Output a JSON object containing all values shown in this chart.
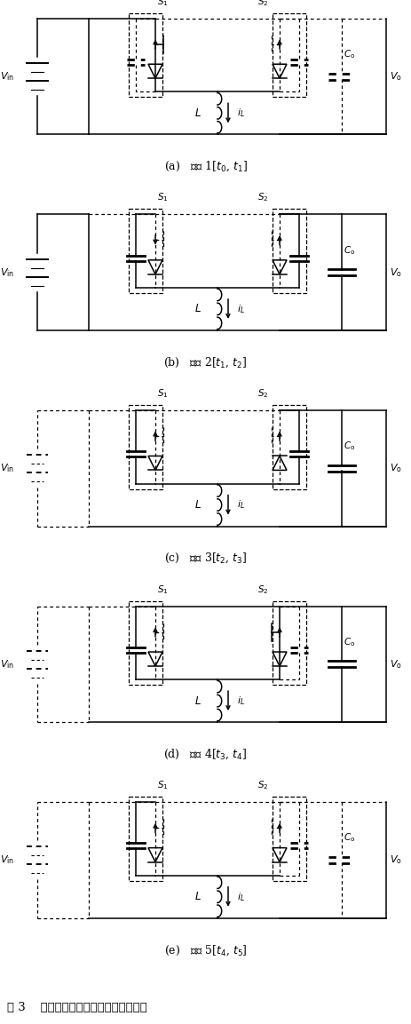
{
  "figure_width": 4.63,
  "figure_height": 11.53,
  "panels": [
    {
      "label": "(a)",
      "caption": "阶段 1[$t_0$, $t_1$]",
      "vin_dashed": false,
      "s1_box_dashed": false,
      "s1_cap_dashed": true,
      "s1_arrow_up": true,
      "s2_box_dashed": true,
      "s2_cap_dashed": true,
      "s2_diode_flipped": false,
      "co_dashed": true,
      "right_rail_dashed": true,
      "mid_rail_dashed": false,
      "bot_rail_right_dashed": false
    },
    {
      "label": "(b)",
      "caption": "阶段 2[$t_1$, $t_2$]",
      "vin_dashed": false,
      "s1_box_dashed": true,
      "s1_cap_dashed": false,
      "s1_arrow_up": false,
      "s2_box_dashed": true,
      "s2_cap_dashed": false,
      "s2_diode_flipped": false,
      "co_dashed": false,
      "right_rail_dashed": false,
      "mid_rail_dashed": false,
      "bot_rail_right_dashed": false
    },
    {
      "label": "(c)",
      "caption": "阶段 3[$t_2$, $t_3$]",
      "vin_dashed": true,
      "s1_box_dashed": true,
      "s1_cap_dashed": false,
      "s1_arrow_up": true,
      "s2_box_dashed": true,
      "s2_cap_dashed": false,
      "s2_diode_flipped": true,
      "co_dashed": false,
      "right_rail_dashed": false,
      "mid_rail_dashed": false,
      "bot_rail_right_dashed": false
    },
    {
      "label": "(d)",
      "caption": "阶段 4[$t_3$, $t_4$]",
      "vin_dashed": true,
      "s1_box_dashed": true,
      "s1_cap_dashed": false,
      "s1_arrow_up": true,
      "s2_box_dashed": false,
      "s2_cap_dashed": true,
      "s2_diode_flipped": false,
      "co_dashed": false,
      "right_rail_dashed": false,
      "mid_rail_dashed": false,
      "bot_rail_right_dashed": false
    },
    {
      "label": "(e)",
      "caption": "阶段 5[$t_4$, $t_5$]",
      "vin_dashed": true,
      "s1_box_dashed": true,
      "s1_cap_dashed": false,
      "s1_arrow_up": true,
      "s2_box_dashed": true,
      "s2_cap_dashed": true,
      "s2_diode_flipped": false,
      "co_dashed": true,
      "right_rail_dashed": true,
      "mid_rail_dashed": false,
      "bot_rail_right_dashed": false
    }
  ],
  "bottom_caption": "图 3    电感电流不反向时各阶段等效电路"
}
